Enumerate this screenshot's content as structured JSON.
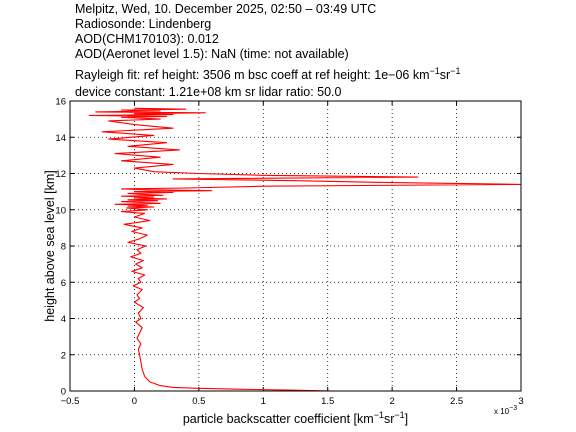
{
  "header": {
    "line1": "Melpitz, Wed, 10. December 2025, 02:50 – 03:49 UTC",
    "line2": "Radiosonde: Lindenberg",
    "line3": "AOD(CHM170103): 0.012",
    "line4": "AOD(Aeronet level 1.5): NaN   (time: not available)",
    "line5_a": "Rayleigh fit:     ref height: 3506 m     bsc coeff at ref height: 1e−06 km",
    "line5_sup1": "−1",
    "line5_mid": "sr",
    "line5_sup2": "−1",
    "line6": "device constant: 1.21e+08 km sr     lidar ratio: 50.0"
  },
  "chart_data": {
    "type": "line",
    "xlabel_main": "particle backscatter coefficient [km",
    "xlabel_sup1": "−1",
    "xlabel_mid": "sr",
    "xlabel_sup2": "−1",
    "xlabel_end": "]",
    "ylabel": "height above sea level [km]",
    "x_multiplier_label": "x 10",
    "x_multiplier_exp": "−3",
    "xlim": [
      -0.5,
      3.0
    ],
    "ylim": [
      0,
      16
    ],
    "xticks": [
      -0.5,
      0,
      0.5,
      1,
      1.5,
      2,
      2.5,
      3
    ],
    "xtick_labels": [
      "−0.5",
      "0",
      "0.5",
      "1",
      "1.5",
      "2",
      "2.5",
      "3"
    ],
    "yticks": [
      0,
      2,
      4,
      6,
      8,
      10,
      12,
      14,
      16
    ],
    "ytick_labels": [
      "0",
      "2",
      "4",
      "6",
      "8",
      "10",
      "12",
      "14",
      "16"
    ],
    "grid": true,
    "series": [
      {
        "color": "#ff0000",
        "x": [
          1.55,
          1.2,
          0.8,
          0.5,
          0.3,
          0.2,
          0.12,
          0.08,
          0.06,
          0.05,
          0.04,
          0.03,
          0.05,
          0.02,
          0.04,
          0.06,
          0.01,
          0.05,
          0.03,
          0.07,
          0.0,
          0.04,
          0.02,
          0.06,
          -0.01,
          0.05,
          0.03,
          0.08,
          -0.02,
          0.06,
          0.01,
          0.07,
          -0.03,
          0.05,
          0.02,
          0.09,
          -0.05,
          0.04,
          0.1,
          -0.02,
          0.06,
          -0.08,
          0.12,
          0.0,
          0.08,
          -0.1,
          0.1,
          0.02,
          -0.06,
          0.15,
          -0.05,
          0.1,
          -0.15,
          0.2,
          0.05,
          -0.1,
          0.18,
          -0.05,
          0.25,
          0.0,
          0.15,
          -0.1,
          0.22,
          0.05,
          -0.05,
          0.3,
          0.0,
          0.6,
          0.1,
          -0.1,
          0.4,
          1.0,
          3.0,
          2.0,
          1.3,
          0.3,
          2.2,
          1.0,
          0.5,
          0.15,
          0.0,
          0.3,
          -0.1,
          0.2,
          -0.15,
          0.35,
          -0.05,
          0.25,
          -0.2,
          0.15,
          -0.25,
          0.3,
          0.0,
          -0.2,
          0.2,
          -0.1,
          0.25,
          -0.35,
          0.3,
          0.0,
          0.55,
          -0.3,
          0.2,
          -0.1,
          0.4,
          0.0
        ],
        "y": [
          0.0,
          0.05,
          0.1,
          0.15,
          0.2,
          0.3,
          0.5,
          0.8,
          1.2,
          1.6,
          2.0,
          2.3,
          2.6,
          2.9,
          3.2,
          3.5,
          3.8,
          4.0,
          4.3,
          4.6,
          4.9,
          5.1,
          5.3,
          5.6,
          5.8,
          6.0,
          6.2,
          6.4,
          6.6,
          6.8,
          7.0,
          7.2,
          7.4,
          7.6,
          7.8,
          8.0,
          8.2,
          8.4,
          8.6,
          8.8,
          9.0,
          9.2,
          9.4,
          9.6,
          9.8,
          9.9,
          10.0,
          10.05,
          10.1,
          10.15,
          10.2,
          10.25,
          10.3,
          10.35,
          10.4,
          10.45,
          10.5,
          10.55,
          10.6,
          10.65,
          10.7,
          10.75,
          10.8,
          10.85,
          10.9,
          10.95,
          11.0,
          11.05,
          11.1,
          11.15,
          11.2,
          11.3,
          11.4,
          11.5,
          11.6,
          11.7,
          11.8,
          11.9,
          12.0,
          12.1,
          12.3,
          12.5,
          12.7,
          12.9,
          13.1,
          13.3,
          13.5,
          13.7,
          13.9,
          14.1,
          14.3,
          14.5,
          14.7,
          14.9,
          15.0,
          15.1,
          15.15,
          15.2,
          15.25,
          15.3,
          15.35,
          15.4,
          15.45,
          15.5,
          15.55,
          15.6
        ]
      }
    ]
  }
}
